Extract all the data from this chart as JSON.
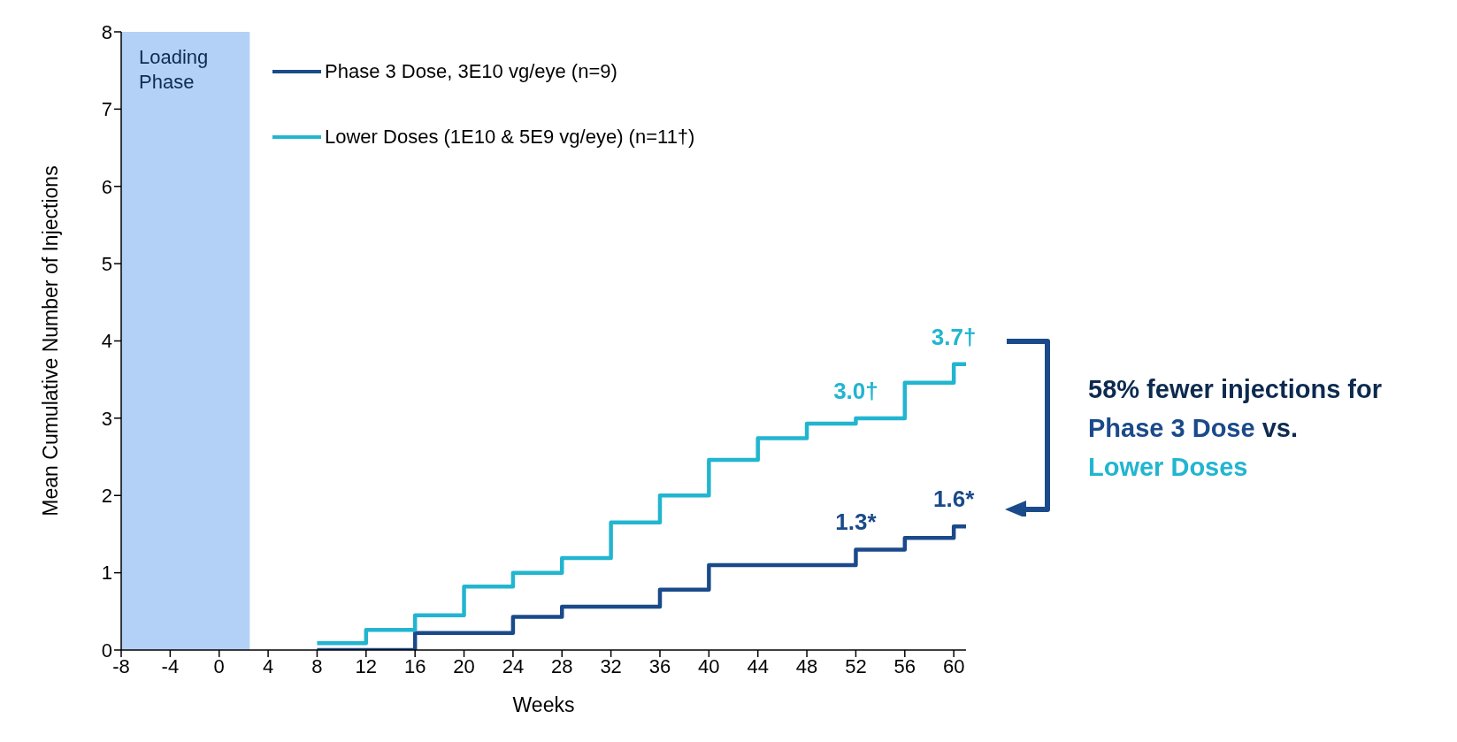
{
  "chart_data": {
    "type": "step",
    "xlabel": "Weeks",
    "ylabel": "Mean Cumulative Number of Injections",
    "x": [
      8,
      12,
      16,
      20,
      24,
      28,
      32,
      36,
      40,
      44,
      48,
      52,
      56,
      60,
      61
    ],
    "series": [
      {
        "name": "Phase 3 Dose, 3E10 vg/eye (n=9)",
        "color": "#1a4a8a",
        "values": [
          0,
          0,
          0.22,
          0.22,
          0.43,
          0.56,
          0.56,
          0.78,
          1.1,
          1.1,
          1.1,
          1.3,
          1.45,
          1.6,
          1.6
        ],
        "value_labels": [
          null,
          null,
          null,
          null,
          null,
          null,
          null,
          null,
          null,
          null,
          null,
          "1.3*",
          null,
          "1.6*",
          null
        ]
      },
      {
        "name": "Lower Doses (1E10 & 5E9 vg/eye) (n=11†)",
        "color": "#22b5d0",
        "values": [
          0.09,
          0.26,
          0.45,
          0.82,
          1.0,
          1.19,
          1.65,
          2.0,
          2.46,
          2.74,
          2.93,
          3.0,
          3.46,
          3.7,
          3.7
        ],
        "value_labels": [
          null,
          null,
          null,
          null,
          null,
          null,
          null,
          null,
          null,
          null,
          null,
          "3.0†",
          null,
          "3.7†",
          null
        ]
      }
    ],
    "xlim": [
      -8,
      61
    ],
    "xticks": [
      -8,
      -4,
      0,
      4,
      8,
      12,
      16,
      20,
      24,
      28,
      32,
      36,
      40,
      44,
      48,
      52,
      56,
      60
    ],
    "ylim": [
      0,
      8
    ],
    "yticks": [
      0,
      1,
      2,
      3,
      4,
      5,
      6,
      7,
      8
    ],
    "grid": false,
    "legend": "top left",
    "marker": "none",
    "line_style": "solid",
    "bands": [
      {
        "axis": "x",
        "from": -8,
        "to": 2.5,
        "label": "Loading Phase",
        "color": "#b3d1f7"
      }
    ],
    "annotations": [
      "58% fewer injections for",
      "Phase 3 Dose",
      "vs.",
      "Lower Doses"
    ]
  }
}
